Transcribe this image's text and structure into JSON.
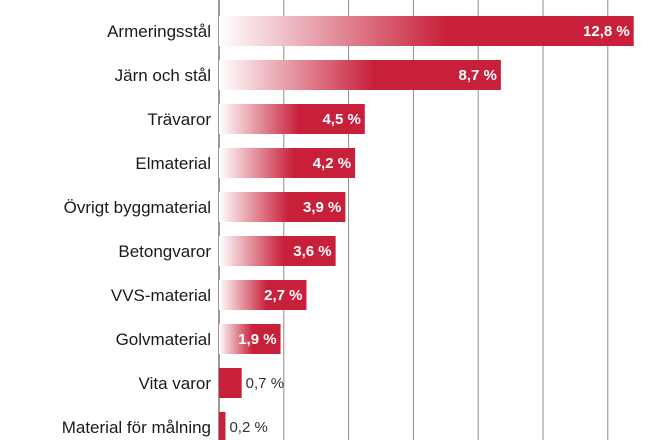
{
  "chart_data": {
    "type": "bar",
    "orientation": "horizontal",
    "categories": [
      "Armeringsstål",
      "Järn och stål",
      "Trävaror",
      "Elmaterial",
      "Övrigt byggmaterial",
      "Betongvaror",
      "VVS-material",
      "Golvmaterial",
      "Vita varor",
      "Material för målning"
    ],
    "values": [
      12.8,
      8.7,
      4.5,
      4.2,
      3.9,
      3.6,
      2.7,
      1.9,
      0.7,
      0.2
    ],
    "value_labels": [
      "12,8 %",
      "8,7 %",
      "4,5 %",
      "4,2 %",
      "3,9 %",
      "3,6 %",
      "2,7 %",
      "1,9 %",
      "0,7 %",
      "0,2 %"
    ],
    "xlim": [
      0,
      13
    ],
    "grid": true,
    "colors": {
      "bar": "#c8203a",
      "bar_fade": "#ffffff",
      "grid": "#8c8c8c"
    }
  }
}
